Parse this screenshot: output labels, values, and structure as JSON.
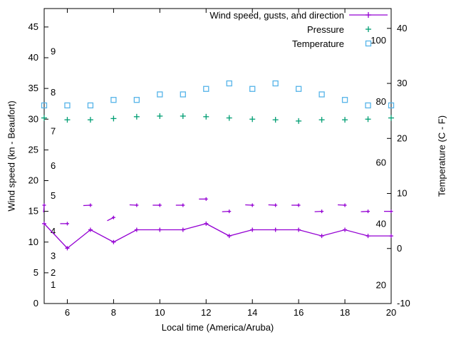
{
  "chart_data": {
    "type": "line",
    "title": "",
    "xlabel": "Local time (America/Aruba)",
    "ylabel": "Wind speed (kn - Beaufort)",
    "y2label": "Temperature (C - F)",
    "x_range": [
      5,
      20
    ],
    "x_ticks": [
      6,
      8,
      10,
      12,
      14,
      16,
      18,
      20
    ],
    "y_left_range": [
      0,
      48
    ],
    "y_left_ticks": [
      0,
      5,
      10,
      15,
      20,
      25,
      30,
      35,
      40,
      45
    ],
    "y_right_range": [
      -10,
      43.6
    ],
    "y_right_ticks": [
      -10,
      0,
      10,
      20,
      30,
      40
    ],
    "grid": false,
    "legend_position": "top-right-inside",
    "border_color": "#000000",
    "background_color": "#ffffff",
    "beaufort_scale_labels": [
      {
        "label": "1",
        "kn": 3
      },
      {
        "label": "2",
        "kn": 5
      },
      {
        "label": "3",
        "kn": 7.7
      },
      {
        "label": "4",
        "kn": 11.7
      },
      {
        "label": "5",
        "kn": 17.5
      },
      {
        "label": "6",
        "kn": 22.4
      },
      {
        "label": "7",
        "kn": 28
      },
      {
        "label": "8",
        "kn": 34.3
      },
      {
        "label": "9",
        "kn": 41
      }
    ],
    "fahrenheit_scale_labels": [
      {
        "label": "20",
        "f": 20
      },
      {
        "label": "40",
        "f": 40
      },
      {
        "label": "60",
        "f": 60
      },
      {
        "label": "80",
        "f": 80
      },
      {
        "label": "100",
        "f": 100
      }
    ],
    "x": [
      5,
      6,
      7,
      8,
      9,
      10,
      11,
      12,
      13,
      14,
      15,
      16,
      17,
      18,
      19,
      20
    ],
    "series": [
      {
        "name": "Wind speed, gusts, and direction",
        "type": "linespoints",
        "color": "#9400d3",
        "axis": "left",
        "wind_kn": [
          13,
          9,
          12,
          10,
          12,
          12,
          12,
          13,
          11,
          12,
          12,
          12,
          11,
          12,
          11,
          11
        ],
        "gusts_kn": [
          16,
          13,
          16,
          14,
          16,
          16,
          16,
          17,
          15,
          16,
          16,
          16,
          15,
          16,
          15,
          15
        ],
        "direction_deg": [
          265,
          180,
          183,
          207,
          177,
          180,
          180,
          180,
          183,
          177,
          177,
          180,
          183,
          177,
          183,
          180
        ]
      },
      {
        "name": "Pressure",
        "type": "points-plus",
        "color": "#009e73",
        "axis": "left",
        "values_inHg": [
          30.2,
          29.9,
          29.9,
          30.1,
          30.4,
          30.5,
          30.5,
          30.4,
          30.2,
          30.0,
          29.9,
          29.7,
          29.9,
          29.9,
          30.0,
          30.2
        ]
      },
      {
        "name": "Temperature",
        "type": "points-square",
        "color": "#56b4e9",
        "axis": "right",
        "values_c": [
          26,
          26,
          26,
          27,
          27,
          28,
          28,
          29,
          30,
          29,
          30,
          29,
          28,
          27,
          26,
          26
        ]
      }
    ]
  }
}
